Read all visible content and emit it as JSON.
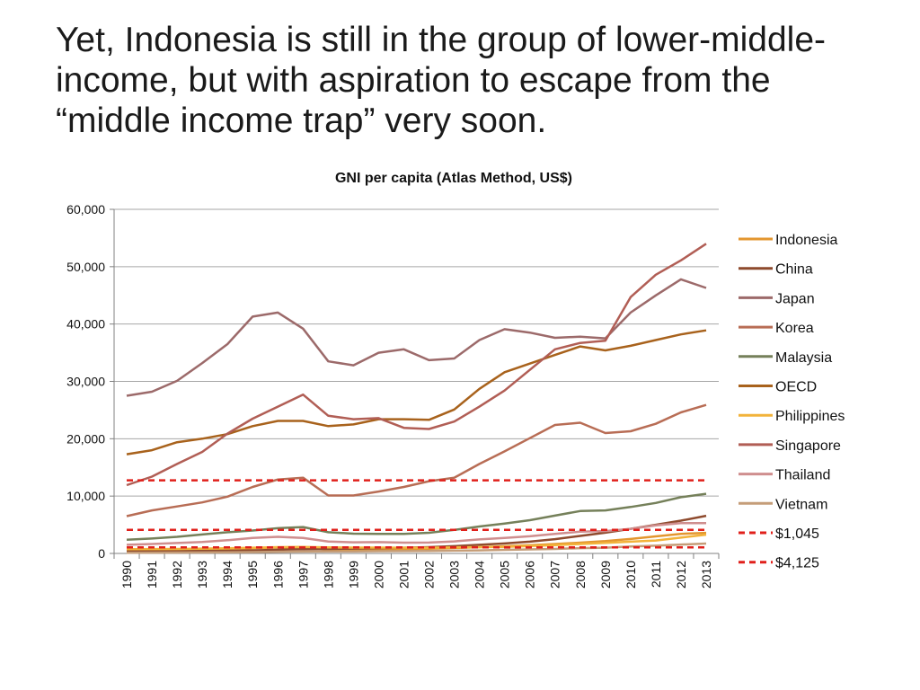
{
  "slide": {
    "title": "Yet, Indonesia is still in the group of lower-middle-income, but with aspiration to escape from the “middle income trap” very soon."
  },
  "chart_data": {
    "type": "line",
    "title": "GNI per capita (Atlas Method, US$)",
    "xlabel": "",
    "ylabel": "",
    "ylim": [
      0,
      60000
    ],
    "yticks": [
      "0",
      "10,000",
      "20,000",
      "30,000",
      "40,000",
      "50,000",
      "60,000"
    ],
    "ytick_values": [
      0,
      10000,
      20000,
      30000,
      40000,
      50000,
      60000
    ],
    "grid": true,
    "legend_position": "right",
    "x": [
      "1990",
      "1991",
      "1992",
      "1993",
      "1994",
      "1995",
      "1996",
      "1997",
      "1998",
      "1999",
      "2000",
      "2001",
      "2002",
      "2003",
      "2004",
      "2005",
      "2006",
      "2007",
      "2008",
      "2009",
      "2010",
      "2011",
      "2012",
      "2013"
    ],
    "series": [
      {
        "name": "Indonesia",
        "color": "#e3962f",
        "dashed": false,
        "values": [
          560,
          610,
          660,
          720,
          800,
          920,
          1030,
          1100,
          660,
          580,
          590,
          720,
          820,
          950,
          1100,
          1250,
          1420,
          1640,
          1880,
          2150,
          2530,
          2980,
          3420,
          3580
        ]
      },
      {
        "name": "China",
        "color": "#8e4a2d",
        "dashed": false,
        "values": [
          330,
          350,
          390,
          420,
          470,
          530,
          650,
          740,
          790,
          840,
          930,
          1000,
          1100,
          1270,
          1500,
          1740,
          2060,
          2490,
          3050,
          3620,
          4300,
          5000,
          5720,
          6560
        ]
      },
      {
        "name": "Japan",
        "color": "#9c6a6a",
        "dashed": false,
        "values": [
          27500,
          28200,
          30100,
          33200,
          36500,
          41300,
          42000,
          39200,
          33500,
          32800,
          35000,
          35600,
          33700,
          34000,
          37200,
          39100,
          38500,
          37600,
          37800,
          37500,
          42000,
          45000,
          47800,
          46300
        ]
      },
      {
        "name": "Korea",
        "color": "#b86d55",
        "dashed": false,
        "values": [
          6500,
          7500,
          8200,
          8900,
          9900,
          11600,
          12900,
          13200,
          10100,
          10100,
          10800,
          11600,
          12600,
          13200,
          15600,
          17800,
          20100,
          22400,
          22800,
          21000,
          21300,
          22600,
          24600,
          25900
        ]
      },
      {
        "name": "Malaysia",
        "color": "#75805a",
        "dashed": false,
        "values": [
          2400,
          2600,
          2900,
          3300,
          3700,
          4000,
          4400,
          4600,
          3700,
          3450,
          3400,
          3400,
          3600,
          4100,
          4700,
          5200,
          5800,
          6600,
          7400,
          7500,
          8100,
          8800,
          9800,
          10400
        ]
      },
      {
        "name": "OECD",
        "color": "#a8621c",
        "dashed": false,
        "values": [
          17300,
          18000,
          19400,
          20000,
          20800,
          22200,
          23100,
          23100,
          22200,
          22500,
          23400,
          23400,
          23300,
          25100,
          28700,
          31600,
          33100,
          34600,
          36100,
          35400,
          36200,
          37200,
          38200,
          38900
        ]
      },
      {
        "name": "Philippines",
        "color": "#f2b33b",
        "dashed": false,
        "values": [
          740,
          760,
          790,
          850,
          900,
          1000,
          1100,
          1150,
          1050,
          1020,
          1020,
          1000,
          1000,
          1050,
          1100,
          1150,
          1300,
          1450,
          1650,
          1850,
          2050,
          2250,
          2750,
          3270
        ]
      },
      {
        "name": "Singapore",
        "color": "#b15e55",
        "dashed": false,
        "values": [
          11900,
          13400,
          15600,
          17700,
          20900,
          23500,
          25600,
          27700,
          24000,
          23400,
          23600,
          21900,
          21700,
          23000,
          25600,
          28400,
          32000,
          35600,
          36700,
          37100,
          44700,
          48600,
          51100,
          54000
        ]
      },
      {
        "name": "Thailand",
        "color": "#cf8e8e",
        "dashed": false,
        "values": [
          1500,
          1650,
          1820,
          2000,
          2310,
          2700,
          2900,
          2700,
          2080,
          1950,
          1970,
          1880,
          1900,
          2100,
          2450,
          2700,
          3000,
          3400,
          3800,
          3900,
          4300,
          4900,
          5300,
          5300
        ]
      },
      {
        "name": "Vietnam",
        "color": "#c59d78",
        "dashed": false,
        "values": [
          130,
          140,
          150,
          170,
          200,
          240,
          290,
          330,
          350,
          360,
          390,
          410,
          430,
          480,
          540,
          620,
          700,
          790,
          920,
          1000,
          1200,
          1350,
          1550,
          1730
        ]
      },
      {
        "name": "$1,045",
        "color": "#e0201b",
        "dashed": true,
        "values": [
          1045,
          1045,
          1045,
          1045,
          1045,
          1045,
          1045,
          1045,
          1045,
          1045,
          1045,
          1045,
          1045,
          1045,
          1045,
          1045,
          1045,
          1045,
          1045,
          1045,
          1045,
          1045,
          1045,
          1045
        ]
      },
      {
        "name": "$4,125",
        "color": "#e0201b",
        "dashed": true,
        "values": [
          4125,
          4125,
          4125,
          4125,
          4125,
          4125,
          4125,
          4125,
          4125,
          4125,
          4125,
          4125,
          4125,
          4125,
          4125,
          4125,
          4125,
          4125,
          4125,
          4125,
          4125,
          4125,
          4125,
          4125
        ]
      },
      {
        "name": "",
        "color": "#e0201b",
        "dashed": true,
        "values": [
          12746,
          12746,
          12746,
          12746,
          12746,
          12746,
          12746,
          12746,
          12746,
          12746,
          12746,
          12746,
          12746,
          12746,
          12746,
          12746,
          12746,
          12746,
          12746,
          12746,
          12746,
          12746,
          12746,
          12746
        ]
      }
    ]
  }
}
